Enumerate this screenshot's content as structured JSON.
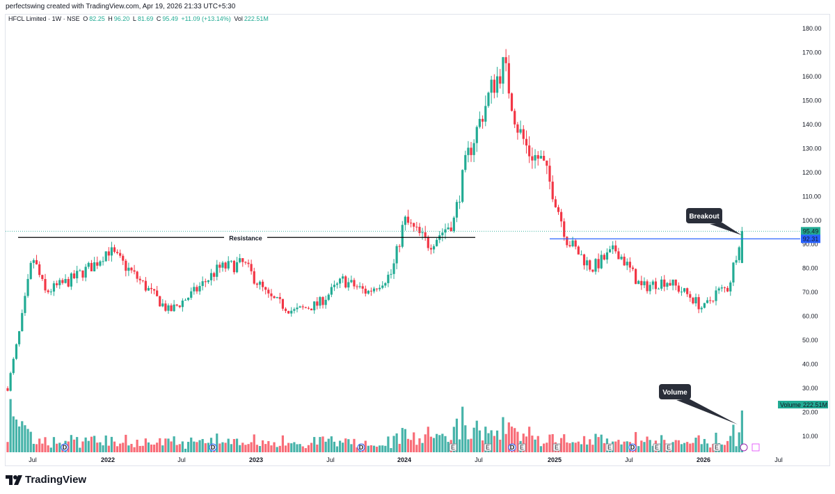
{
  "header": {
    "attribution": "perfectswing created with TradingView.com, Apr 19, 2026 21:33 UTC+5:30"
  },
  "legend": {
    "symbol": "HFCL Limited · 1W · NSE",
    "o_label": "O",
    "o_value": "82.25",
    "h_label": "H",
    "h_value": "96.20",
    "l_label": "L",
    "l_value": "81.69",
    "c_label": "C",
    "c_value": "95.49",
    "change": "+11.09 (+13.14%)",
    "vol_label": "Vol",
    "vol_value": "222.51M"
  },
  "chart_data": {
    "type": "candlestick",
    "title": "HFCL Limited · 1W · NSE",
    "ylim": [
      0,
      180
    ],
    "y_ticks": [
      "180.00",
      "170.00",
      "160.00",
      "150.00",
      "140.00",
      "130.00",
      "120.00",
      "110.00",
      "100.00",
      "90.00",
      "80.00",
      "70.00",
      "60.00",
      "50.00",
      "40.00",
      "30.00",
      "20.00",
      "10.00"
    ],
    "x_ticks": [
      "Jul",
      "2022",
      "Jul",
      "2023",
      "Jul",
      "2024",
      "Jul",
      "2025",
      "Jul",
      "2026",
      "Jul"
    ],
    "last_price": "95.49",
    "resistance_level": "92.31",
    "resistance_label": "Resistance",
    "volume_label": "Volume",
    "volume_value": "222.51M",
    "annotations": [
      "Breakout",
      "Volume"
    ],
    "events": [
      "D",
      "D",
      "D",
      "E",
      "E",
      "D",
      "E",
      "E",
      "E",
      "D",
      "E",
      "E",
      "E"
    ],
    "price_series_approx": [
      [
        "2021-05",
        30
      ],
      [
        "2021-06",
        55
      ],
      [
        "2021-07",
        85
      ],
      [
        "2021-08",
        70
      ],
      [
        "2021-10",
        75
      ],
      [
        "2021-12",
        82
      ],
      [
        "2022-01",
        88
      ],
      [
        "2022-03",
        78
      ],
      [
        "2022-06",
        62
      ],
      [
        "2022-08",
        70
      ],
      [
        "2022-10",
        80
      ],
      [
        "2022-12",
        82
      ],
      [
        "2023-02",
        68
      ],
      [
        "2023-04",
        62
      ],
      [
        "2023-06",
        65
      ],
      [
        "2023-08",
        75
      ],
      [
        "2023-10",
        70
      ],
      [
        "2023-12",
        78
      ],
      [
        "2024-01",
        100
      ],
      [
        "2024-03",
        90
      ],
      [
        "2024-05",
        100
      ],
      [
        "2024-06",
        125
      ],
      [
        "2024-08",
        155
      ],
      [
        "2024-09",
        165
      ],
      [
        "2024-10",
        140
      ],
      [
        "2024-11",
        128
      ],
      [
        "2024-12",
        125
      ],
      [
        "2025-01",
        110
      ],
      [
        "2025-02",
        92
      ],
      [
        "2025-04",
        80
      ],
      [
        "2025-06",
        88
      ],
      [
        "2025-08",
        72
      ],
      [
        "2025-10",
        75
      ],
      [
        "2025-12",
        68
      ],
      [
        "2026-01",
        63
      ],
      [
        "2026-02",
        70
      ],
      [
        "2026-03",
        72
      ],
      [
        "2026-04",
        95.49
      ]
    ],
    "colors": {
      "up": "#22ab94",
      "down": "#f23645",
      "resistance_line": "#000000",
      "level_line": "#2962ff"
    }
  },
  "footer": {
    "brand": "TradingView"
  }
}
